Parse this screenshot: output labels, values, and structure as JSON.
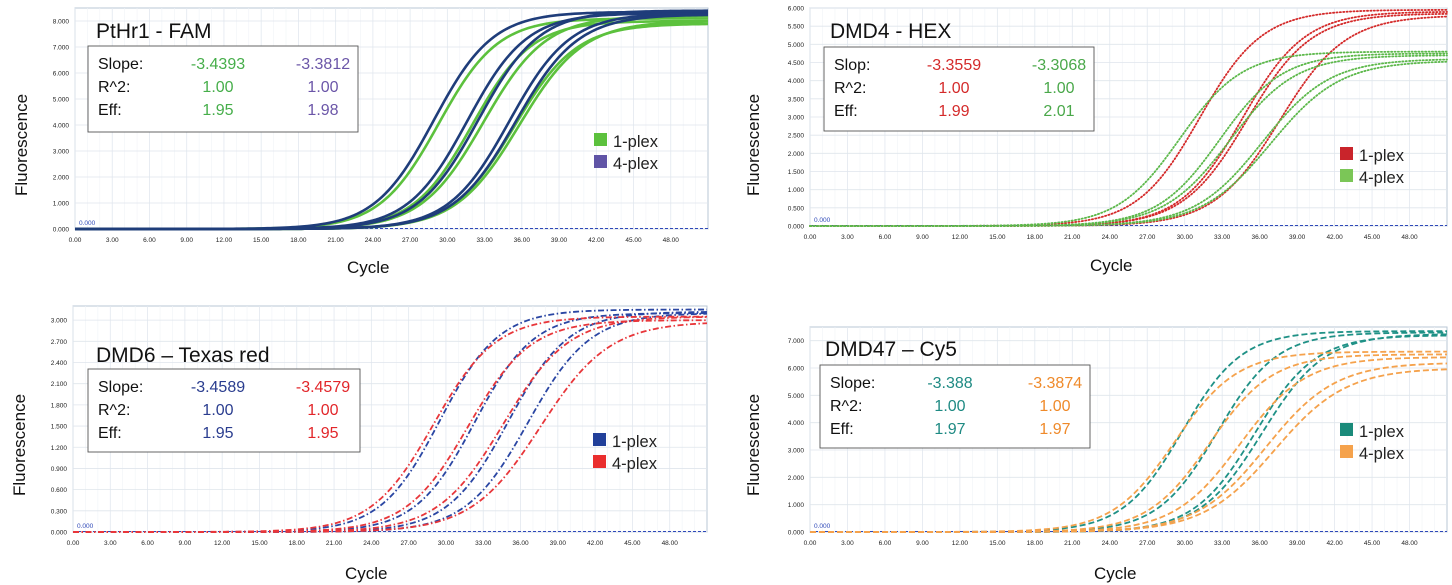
{
  "panels": [
    {
      "title": "PtHr1 - FAM",
      "xlabel": "Cycle",
      "ylabel": "Fluorescence",
      "stat_labels": [
        "Slope:",
        "R^2:",
        "Eff:"
      ],
      "stats": [
        {
          "color": "#46ae4a",
          "values": [
            "-3.4393",
            "1.00",
            "1.95"
          ]
        },
        {
          "color": "#6b56a8",
          "values": [
            "-3.3812",
            "1.00",
            "1.98"
          ]
        }
      ],
      "legend": [
        {
          "label": "1-plex",
          "color": "#5cc13d"
        },
        {
          "label": "4-plex",
          "color": "#6054a6"
        }
      ],
      "chart_data": {
        "type": "line",
        "xlabel": "Cycle",
        "ylabel": "Fluorescence",
        "xlim": [
          0,
          51
        ],
        "ylim": [
          0,
          8.5
        ],
        "xticks": [
          "0.00",
          "3.00",
          "6.00",
          "9.00",
          "12.00",
          "15.00",
          "18.00",
          "21.00",
          "24.00",
          "27.00",
          "30.00",
          "33.00",
          "36.00",
          "39.00",
          "42.00",
          "45.00",
          "48.00"
        ],
        "yticks": [
          "0.000",
          "1.000",
          "2.000",
          "3.000",
          "4.000",
          "5.000",
          "6.000",
          "7.000",
          "8.000"
        ],
        "ytick_values": [
          0,
          1,
          2,
          3,
          4,
          5,
          6,
          7,
          8
        ],
        "threshold_label": "0.000",
        "line_style": "solid",
        "series": [
          {
            "name": "1-plex",
            "color": "#5cc13d",
            "curves": [
              {
                "ct": 29.3,
                "k": 0.42,
                "plateau": 8.1
              },
              {
                "ct": 32.0,
                "k": 0.42,
                "plateau": 8.0
              },
              {
                "ct": 32.9,
                "k": 0.4,
                "plateau": 8.2
              },
              {
                "ct": 35.4,
                "k": 0.4,
                "plateau": 7.9
              },
              {
                "ct": 35.8,
                "k": 0.39,
                "plateau": 8.0
              }
            ]
          },
          {
            "name": "4-plex",
            "color": "#1f3d7a",
            "curves": [
              {
                "ct": 28.9,
                "k": 0.42,
                "plateau": 8.35
              },
              {
                "ct": 31.6,
                "k": 0.42,
                "plateau": 8.3
              },
              {
                "ct": 32.5,
                "k": 0.41,
                "plateau": 8.4
              },
              {
                "ct": 35.0,
                "k": 0.41,
                "plateau": 8.3
              },
              {
                "ct": 35.5,
                "k": 0.4,
                "plateau": 8.25
              }
            ]
          }
        ]
      }
    },
    {
      "title": "DMD4 - HEX",
      "xlabel": "Cycle",
      "ylabel": "Fluorescence",
      "stat_labels": [
        "Slop:",
        "R^2:",
        "Eff:"
      ],
      "stats": [
        {
          "color": "#d42a2a",
          "values": [
            "-3.3559",
            "1.00",
            "1.99"
          ]
        },
        {
          "color": "#4aa84a",
          "values": [
            "-3.3068",
            "1.00",
            "2.01"
          ]
        }
      ],
      "legend": [
        {
          "label": "1-plex",
          "color": "#c9242b"
        },
        {
          "label": "4-plex",
          "color": "#7bc657"
        }
      ],
      "chart_data": {
        "type": "line",
        "xlabel": "Cycle",
        "ylabel": "Fluorescence",
        "xlim": [
          0,
          51
        ],
        "ylim": [
          0,
          6.0
        ],
        "xticks": [
          "0.00",
          "3.00",
          "6.00",
          "9.00",
          "12.00",
          "15.00",
          "18.00",
          "21.00",
          "24.00",
          "27.00",
          "30.00",
          "33.00",
          "36.00",
          "39.00",
          "42.00",
          "45.00",
          "48.00"
        ],
        "yticks": [
          "0.000",
          "0.500",
          "1.000",
          "1.500",
          "2.000",
          "2.500",
          "3.000",
          "3.500",
          "4.000",
          "4.500",
          "5.000",
          "5.500",
          "6.000"
        ],
        "ytick_values": [
          0,
          0.5,
          1,
          1.5,
          2,
          2.5,
          3,
          3.5,
          4,
          4.5,
          5,
          5.5,
          6
        ],
        "threshold_label": "0.000",
        "line_style": "dotted",
        "series": [
          {
            "name": "1-plex",
            "color": "#d42a2a",
            "curves": [
              {
                "ct": 31.2,
                "k": 0.4,
                "plateau": 5.95
              },
              {
                "ct": 34.6,
                "k": 0.4,
                "plateau": 5.9
              },
              {
                "ct": 35.0,
                "k": 0.39,
                "plateau": 5.85
              },
              {
                "ct": 37.6,
                "k": 0.38,
                "plateau": 5.8
              }
            ]
          },
          {
            "name": "4-plex",
            "color": "#5cb84a",
            "curves": [
              {
                "ct": 29.6,
                "k": 0.4,
                "plateau": 4.8
              },
              {
                "ct": 32.8,
                "k": 0.4,
                "plateau": 4.75
              },
              {
                "ct": 33.6,
                "k": 0.38,
                "plateau": 4.7
              },
              {
                "ct": 36.2,
                "k": 0.37,
                "plateau": 4.6
              },
              {
                "ct": 36.9,
                "k": 0.36,
                "plateau": 4.55
              }
            ]
          }
        ]
      }
    },
    {
      "title": "DMD6 – Texas red",
      "xlabel": "Cycle",
      "ylabel": "Fluorescence",
      "stat_labels": [
        "Slope:",
        "R^2:",
        "Eff:"
      ],
      "stats": [
        {
          "color": "#2a3d8f",
          "values": [
            "-3.4589",
            "1.00",
            "1.95"
          ]
        },
        {
          "color": "#e2262a",
          "values": [
            "-3.4579",
            "1.00",
            "1.95"
          ]
        }
      ],
      "legend": [
        {
          "label": "1-plex",
          "color": "#22409a"
        },
        {
          "label": "4-plex",
          "color": "#ea2e2e"
        }
      ],
      "chart_data": {
        "type": "line",
        "xlabel": "Cycle",
        "ylabel": "Fluorescence",
        "xlim": [
          0,
          51
        ],
        "ylim": [
          0,
          3.2
        ],
        "xticks": [
          "0.00",
          "3.00",
          "6.00",
          "9.00",
          "12.00",
          "15.00",
          "18.00",
          "21.00",
          "24.00",
          "27.00",
          "30.00",
          "33.00",
          "36.00",
          "39.00",
          "42.00",
          "45.00",
          "48.00"
        ],
        "yticks": [
          "0.000",
          "0.300",
          "0.600",
          "0.900",
          "1.200",
          "1.500",
          "1.800",
          "2.100",
          "2.400",
          "2.700",
          "3.000"
        ],
        "ytick_values": [
          0,
          0.3,
          0.6,
          0.9,
          1.2,
          1.5,
          1.8,
          2.1,
          2.4,
          2.7,
          3.0
        ],
        "threshold_label": "0.000",
        "line_style": "dashdot",
        "series": [
          {
            "name": "1-plex",
            "color": "#2a46a3",
            "curves": [
              {
                "ct": 29.5,
                "k": 0.42,
                "plateau": 3.15
              },
              {
                "ct": 32.3,
                "k": 0.42,
                "plateau": 3.1
              },
              {
                "ct": 35.0,
                "k": 0.41,
                "plateau": 3.12
              },
              {
                "ct": 36.6,
                "k": 0.4,
                "plateau": 3.1
              }
            ]
          },
          {
            "name": "4-plex",
            "color": "#e8363a",
            "curves": [
              {
                "ct": 29.0,
                "k": 0.4,
                "plateau": 3.05
              },
              {
                "ct": 31.8,
                "k": 0.4,
                "plateau": 3.0
              },
              {
                "ct": 34.6,
                "k": 0.38,
                "plateau": 3.05
              },
              {
                "ct": 37.6,
                "k": 0.36,
                "plateau": 2.98
              }
            ]
          }
        ]
      }
    },
    {
      "title": "DMD47 – Cy5",
      "xlabel": "Cycle",
      "ylabel": "Fluorescence",
      "stat_labels": [
        "Slope:",
        "R^2:",
        "Eff:"
      ],
      "stats": [
        {
          "color": "#1e8a83",
          "values": [
            "-3.388",
            "1.00",
            "1.97"
          ]
        },
        {
          "color": "#ef8a2a",
          "values": [
            "-3.3874",
            "1.00",
            "1.97"
          ]
        }
      ],
      "legend": [
        {
          "label": "1-plex",
          "color": "#1a8a7a"
        },
        {
          "label": "4-plex",
          "color": "#f5a24c"
        }
      ],
      "chart_data": {
        "type": "line",
        "xlabel": "Cycle",
        "ylabel": "Fluorescence",
        "xlim": [
          0,
          51
        ],
        "ylim": [
          0,
          7.5
        ],
        "xticks": [
          "0.00",
          "3.00",
          "6.00",
          "9.00",
          "12.00",
          "15.00",
          "18.00",
          "21.00",
          "24.00",
          "27.00",
          "30.00",
          "33.00",
          "36.00",
          "39.00",
          "42.00",
          "45.00",
          "48.00"
        ],
        "yticks": [
          "0.000",
          "1.000",
          "2.000",
          "3.000",
          "4.000",
          "5.000",
          "6.000",
          "7.000"
        ],
        "ytick_values": [
          0,
          1,
          2,
          3,
          4,
          5,
          6,
          7
        ],
        "threshold_label": "0.000",
        "line_style": "dashed",
        "series": [
          {
            "name": "1-plex",
            "color": "#1f9186",
            "curves": [
              {
                "ct": 29.8,
                "k": 0.42,
                "plateau": 7.35
              },
              {
                "ct": 32.6,
                "k": 0.42,
                "plateau": 7.3
              },
              {
                "ct": 35.6,
                "k": 0.41,
                "plateau": 7.2
              },
              {
                "ct": 36.2,
                "k": 0.4,
                "plateau": 7.25
              }
            ]
          },
          {
            "name": "4-plex",
            "color": "#f5a24c",
            "curves": [
              {
                "ct": 29.2,
                "k": 0.4,
                "plateau": 6.6
              },
              {
                "ct": 32.0,
                "k": 0.4,
                "plateau": 6.5
              },
              {
                "ct": 34.4,
                "k": 0.38,
                "plateau": 6.4
              },
              {
                "ct": 36.5,
                "k": 0.36,
                "plateau": 6.2
              },
              {
                "ct": 37.2,
                "k": 0.35,
                "plateau": 6.0
              }
            ]
          }
        ]
      }
    }
  ]
}
